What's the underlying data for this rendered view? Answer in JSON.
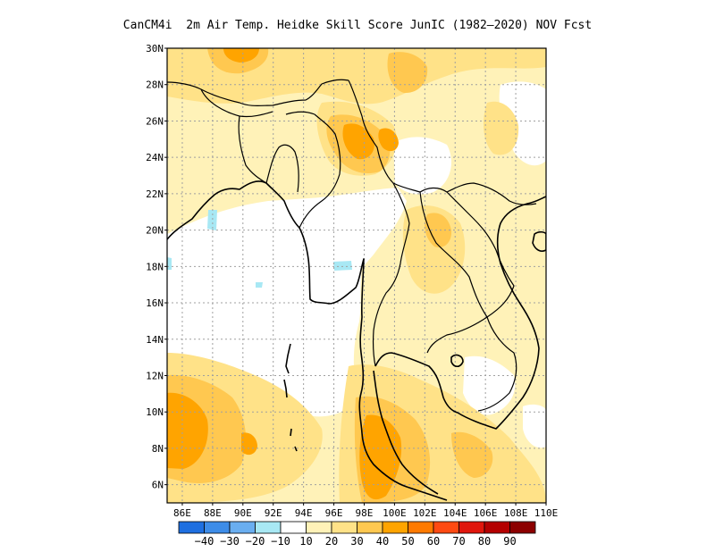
{
  "title": "CanCM4i  2m Air Temp. Heidke Skill Score JunIC (1982–2020) NOV Fcst",
  "lat_labels": [
    "30N",
    "28N",
    "26N",
    "24N",
    "22N",
    "20N",
    "18N",
    "16N",
    "14N",
    "12N",
    "10N",
    "8N",
    "6N"
  ],
  "lon_labels": [
    "86E",
    "88E",
    "90E",
    "92E",
    "94E",
    "96E",
    "98E",
    "100E",
    "102E",
    "104E",
    "106E",
    "108E",
    "110E"
  ],
  "map_extent": {
    "lon_min": 85,
    "lon_max": 110,
    "lat_min": 5,
    "lat_max": 30
  },
  "colorbar": {
    "labels": [
      "−40",
      "−30",
      "−20",
      "−10",
      "10",
      "20",
      "30",
      "40",
      "50",
      "60",
      "70",
      "80",
      "90"
    ],
    "colors": [
      "#1e6fe0",
      "#3d8ce8",
      "#6aaef0",
      "#a8e8f4",
      "#ffffff",
      "#fff2b8",
      "#ffe288",
      "#ffc850",
      "#ffa400",
      "#ff7a00",
      "#ff4a12",
      "#e0160c",
      "#b40000",
      "#8c0000"
    ]
  },
  "field_colors": {
    "level_10_20": "#fff2b8",
    "level_20_30": "#ffe288",
    "level_30_40": "#ffc850",
    "level_40_50": "#ffa400",
    "level_neg": "#a8e8f4"
  }
}
